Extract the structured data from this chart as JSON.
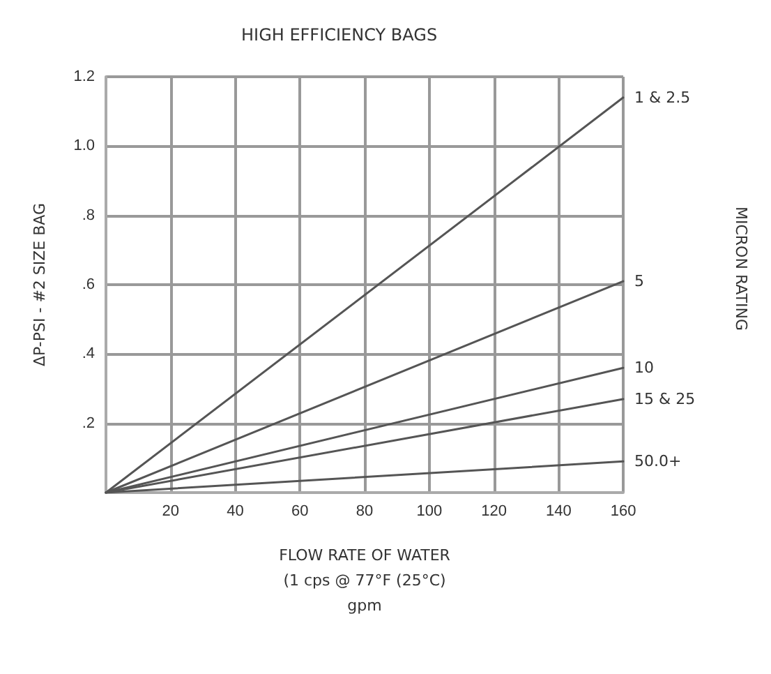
{
  "chart_data": {
    "type": "line",
    "title": "HIGH EFFICIENCY BAGS",
    "xlabel": "FLOW RATE OF WATER\n(1 cps @ 77°F (25°C)\ngpm",
    "ylabel": "ΔP-PSI - #2 SIZE BAG",
    "annotations": [
      "MICRON RATING"
    ],
    "x": [
      0,
      160
    ],
    "xlim": [
      0,
      160
    ],
    "xticks": [
      20,
      40,
      60,
      80,
      100,
      120,
      140,
      160
    ],
    "ylim": [
      0,
      1.2
    ],
    "yticks": [
      {
        "value": 0,
        "label": null
      },
      {
        "value": 0.2,
        "label": ".2"
      },
      {
        "value": 0.4,
        "label": ".4"
      },
      {
        "value": 0.6,
        "label": ".6"
      },
      {
        "value": 0.8,
        "label": ".8"
      },
      {
        "value": 1.0,
        "label": "1.0"
      },
      {
        "value": 1.2,
        "label": "1.2"
      }
    ],
    "grid": true,
    "legend": false,
    "marker": "none",
    "line_style": "solid",
    "series": [
      {
        "name": "1 & 2.5",
        "color": "#555555",
        "values": [
          0,
          1.14
        ]
      },
      {
        "name": "5",
        "color": "#555555",
        "values": [
          0,
          0.61
        ]
      },
      {
        "name": "10",
        "color": "#555555",
        "values": [
          0,
          0.36
        ]
      },
      {
        "name": "15 & 25",
        "color": "#555555",
        "values": [
          0,
          0.27
        ]
      },
      {
        "name": "50.0+",
        "color": "#555555",
        "values": [
          0,
          0.09
        ]
      }
    ]
  }
}
